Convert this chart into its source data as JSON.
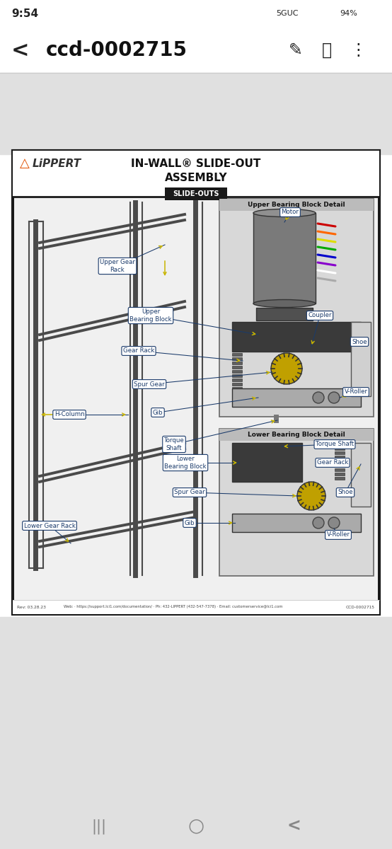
{
  "bg_color": "#e8e8e8",
  "phone_bg": "#ffffff",
  "status_bar_time": "9:54",
  "nav_title": "ccd-0002715",
  "diagram": {
    "outer_border_color": "#1a1a1a",
    "title_line1": "IN-WALL® SLIDE-OUT",
    "title_line2": "ASSEMBLY",
    "slide_out_label": "SLIDE-OUTS",
    "slide_out_label_bg": "#1a1a1a",
    "slide_out_label_color": "#ffffff",
    "label_bg": "#ffffff",
    "label_border": "#1a3a6a",
    "label_text_color": "#1a3a6a",
    "arrow_color": "#c8b400",
    "line_color": "#1a3a6a",
    "struct_color": "#4a4a4a",
    "upper_header": "Upper Bearing Block Detail",
    "lower_header": "Lower Bearing Block Detail",
    "footer_rev": "Rev: 03.28.23",
    "footer_web": "Web: · https://support.lci1.com/documentation/ · Ph: 432-LIPPERT (432-547-7378) · Email: customerservice@lci1.com",
    "footer_doc": "CCD-0002715"
  }
}
